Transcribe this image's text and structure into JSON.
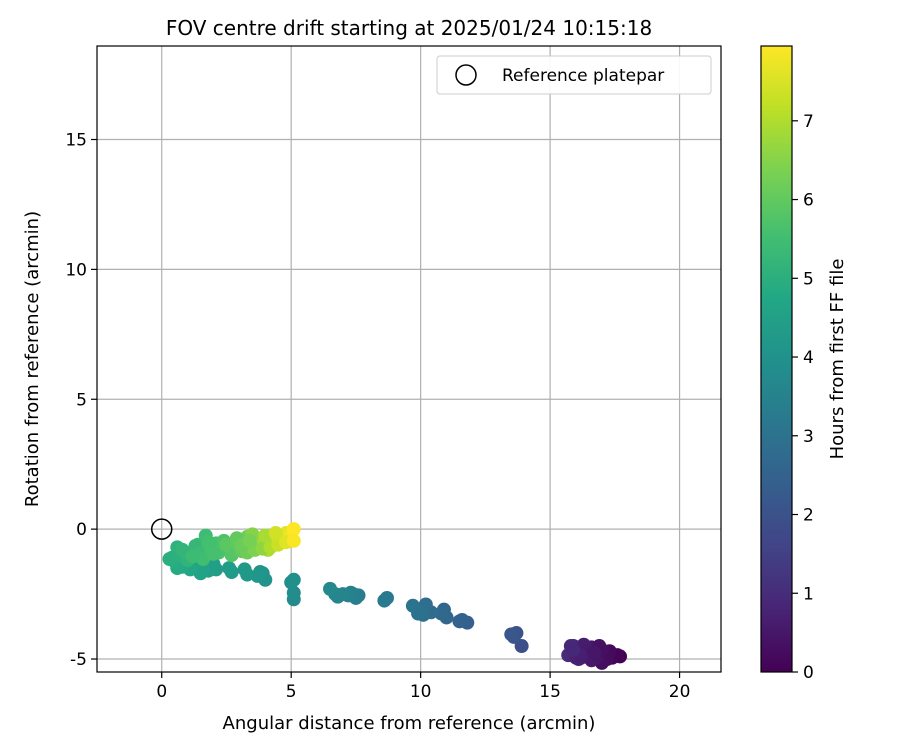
{
  "chart_data": {
    "type": "scatter",
    "title": "FOV centre drift starting at 2025/01/24 10:15:18",
    "xlabel": "Angular distance from reference (arcmin)",
    "ylabel": "Rotation from reference (arcmin)",
    "xlim": [
      -2.5,
      21.6
    ],
    "ylim": [
      -5.5,
      18.6
    ],
    "xticks": [
      0,
      5,
      10,
      15,
      20
    ],
    "yticks": [
      -5,
      0,
      5,
      10,
      15
    ],
    "grid": true,
    "legend": {
      "position": "top-right",
      "entries": [
        "Reference platepar"
      ]
    },
    "reference_point": {
      "name": "Reference platepar",
      "x": 0,
      "y": 0
    },
    "colorbar": {
      "label": "Hours from first FF file",
      "colormap": "viridis",
      "range": [
        0,
        7.95
      ],
      "ticks": [
        0,
        1,
        2,
        3,
        4,
        5,
        6,
        7
      ]
    },
    "series": [
      {
        "x": [
          17.7,
          17.6,
          17.4,
          17.3,
          17.2,
          17.0,
          16.9,
          16.8,
          16.7,
          16.6,
          16.5,
          16.4,
          16.3,
          16.2,
          16.1,
          16.0,
          15.9,
          15.8,
          15.7,
          16.9,
          16.6,
          16.3,
          16.0,
          15.8,
          16.8,
          16.4,
          16.1,
          17.0,
          16.5,
          16.2,
          15.9,
          16.7,
          13.9,
          13.7,
          13.6,
          13.5,
          11.8,
          11.6,
          11.5,
          11.0,
          10.9,
          10.8,
          10.4,
          10.2,
          10.1,
          10.0,
          9.9,
          9.7,
          8.7,
          8.6,
          7.6,
          7.5,
          7.4,
          7.3,
          7.2,
          7.0,
          6.8,
          6.7,
          6.5,
          5.1,
          5.1,
          5.0,
          5.1,
          4.0,
          3.9,
          3.8,
          3.7,
          3.3,
          3.2,
          2.7,
          2.6,
          2.1,
          2.0,
          1.8,
          1.6,
          1.5,
          1.2,
          1.1,
          0.9,
          0.8,
          0.6,
          0.5,
          0.4,
          0.3,
          0.6,
          1.0,
          1.4,
          1.9,
          2.3,
          0.7,
          1.0,
          1.3,
          1.5,
          1.7,
          1.9,
          2.1,
          2.2,
          2.4,
          2.6,
          2.7,
          2.8,
          1.6,
          2.0,
          2.5,
          0.8,
          1.2,
          1.8,
          2.9,
          3.0,
          3.1,
          3.2,
          3.3,
          3.4,
          3.5,
          3.6,
          3.7,
          3.8,
          3.9,
          4.0,
          4.1,
          4.2,
          4.3,
          4.4,
          4.5,
          4.6,
          4.7,
          4.8,
          4.9,
          5.0,
          5.1,
          3.3,
          3.6,
          3.9,
          4.2,
          4.5,
          4.8,
          5.1,
          3.5,
          4.0,
          4.4,
          2.9,
          3.1,
          3.4
        ],
        "y": [
          -4.9,
          -4.85,
          -4.95,
          -4.7,
          -5.0,
          -5.15,
          -4.75,
          -4.95,
          -4.6,
          -4.55,
          -4.9,
          -4.7,
          -4.45,
          -4.95,
          -4.6,
          -4.8,
          -4.5,
          -4.75,
          -4.85,
          -4.5,
          -5.05,
          -4.55,
          -4.95,
          -4.5,
          -4.85,
          -4.7,
          -5.0,
          -4.65,
          -4.8,
          -4.85,
          -4.65,
          -4.75,
          -4.5,
          -4.0,
          -4.15,
          -4.05,
          -3.6,
          -3.5,
          -3.55,
          -3.4,
          -3.1,
          -3.25,
          -3.2,
          -2.9,
          -3.3,
          -3.15,
          -3.25,
          -2.95,
          -2.65,
          -2.75,
          -2.55,
          -2.65,
          -2.5,
          -2.45,
          -2.55,
          -2.5,
          -2.6,
          -2.5,
          -2.3,
          -2.7,
          -2.45,
          -2.05,
          -1.95,
          -1.95,
          -1.7,
          -1.65,
          -1.8,
          -1.75,
          -1.55,
          -1.65,
          -1.5,
          -1.55,
          -1.35,
          -1.6,
          -1.5,
          -1.7,
          -1.4,
          -1.55,
          -1.3,
          -1.45,
          -1.5,
          -1.25,
          -1.1,
          -1.15,
          -0.7,
          -0.95,
          -0.6,
          -0.8,
          -0.55,
          -1.0,
          -1.2,
          -0.65,
          -0.9,
          -0.25,
          -0.75,
          -0.55,
          -0.9,
          -0.45,
          -0.7,
          -1.0,
          -0.85,
          -1.15,
          -0.95,
          -0.6,
          -0.8,
          -1.05,
          -0.5,
          -0.55,
          -0.4,
          -0.85,
          -0.7,
          -0.3,
          -0.65,
          -0.5,
          -0.75,
          -0.35,
          -0.6,
          -0.55,
          -0.25,
          -0.8,
          -0.5,
          -0.35,
          -0.2,
          -0.55,
          -0.3,
          -0.45,
          -0.15,
          -0.4,
          -0.3,
          0.0,
          -0.9,
          -0.8,
          -0.75,
          -0.7,
          -0.6,
          -0.5,
          -0.45,
          -0.2,
          -0.25,
          -0.15,
          -0.35,
          -0.6,
          -0.45
        ],
        "hours": [
          0.0,
          0.05,
          0.1,
          0.2,
          0.25,
          0.3,
          0.35,
          0.4,
          0.45,
          0.5,
          0.55,
          0.6,
          0.65,
          0.7,
          0.75,
          0.8,
          0.85,
          0.9,
          0.95,
          0.38,
          0.52,
          0.62,
          0.78,
          0.92,
          0.42,
          0.58,
          0.72,
          0.33,
          0.55,
          0.68,
          0.88,
          0.48,
          1.9,
          2.0,
          2.1,
          2.15,
          2.4,
          2.45,
          2.5,
          2.6,
          2.65,
          2.7,
          2.8,
          2.85,
          2.9,
          2.95,
          3.0,
          3.05,
          3.2,
          3.25,
          3.3,
          3.35,
          3.4,
          3.45,
          3.5,
          3.55,
          3.6,
          3.65,
          3.7,
          3.8,
          3.85,
          3.9,
          3.95,
          4.0,
          4.05,
          4.1,
          4.15,
          4.2,
          4.25,
          4.3,
          4.35,
          4.4,
          4.45,
          4.5,
          4.55,
          4.6,
          4.65,
          4.7,
          4.75,
          4.8,
          4.85,
          4.9,
          4.95,
          5.0,
          5.1,
          5.2,
          5.3,
          5.4,
          5.5,
          5.05,
          5.15,
          5.25,
          5.35,
          5.45,
          5.55,
          5.6,
          5.65,
          5.7,
          5.75,
          5.8,
          5.85,
          5.5,
          5.6,
          5.9,
          5.2,
          5.4,
          5.55,
          5.95,
          6.0,
          6.05,
          6.1,
          6.2,
          6.25,
          6.35,
          6.45,
          6.55,
          6.65,
          6.75,
          6.85,
          6.95,
          7.05,
          7.15,
          7.25,
          7.35,
          7.45,
          7.55,
          7.65,
          7.75,
          7.85,
          7.95,
          6.2,
          6.4,
          6.6,
          7.0,
          7.3,
          7.6,
          7.9,
          6.5,
          6.9,
          7.4,
          6.0,
          6.15,
          6.3
        ]
      }
    ]
  }
}
